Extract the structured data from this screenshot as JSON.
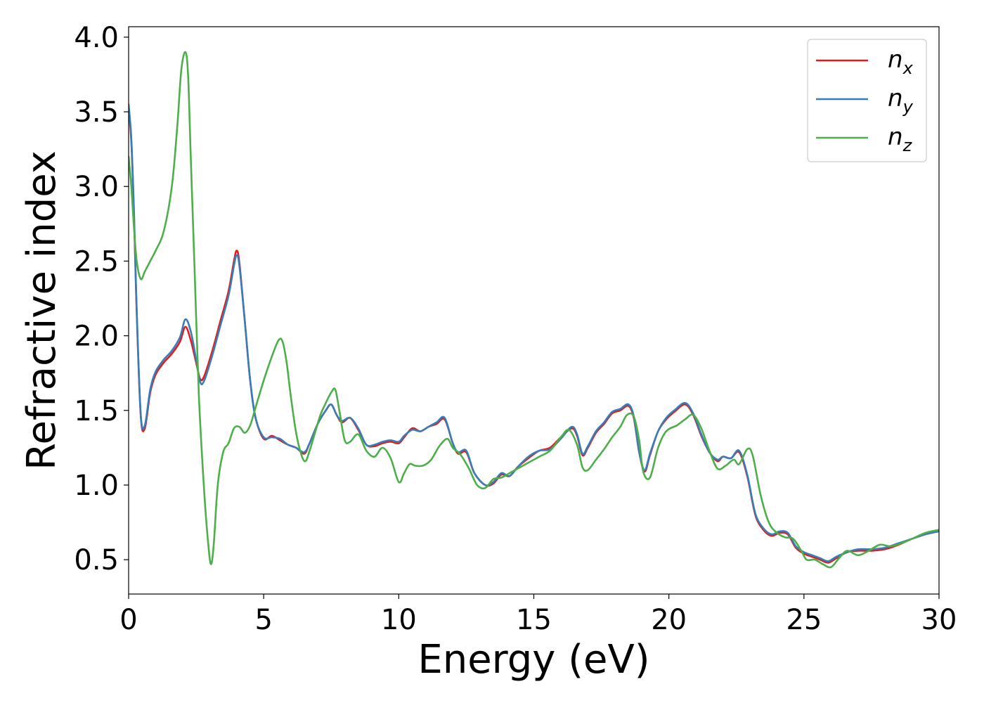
{
  "chart_data": {
    "type": "line",
    "title": "",
    "xlabel": "Energy (eV)",
    "ylabel": "Refractive index",
    "xlim": [
      0,
      30
    ],
    "ylim": [
      0.27,
      4.07
    ],
    "xticks": [
      0,
      5,
      10,
      15,
      20,
      25,
      30
    ],
    "xtick_labels": [
      "0",
      "5",
      "10",
      "15",
      "20",
      "25",
      "30"
    ],
    "yticks": [
      0.5,
      1.0,
      1.5,
      2.0,
      2.5,
      3.0,
      3.5,
      4.0
    ],
    "ytick_labels": [
      "0.5",
      "1.0",
      "1.5",
      "2.0",
      "2.5",
      "3.0",
      "3.5",
      "4.0"
    ],
    "grid": false,
    "legend_position": "top-right",
    "series": [
      {
        "name": "n_x",
        "label_base": "n",
        "label_sub": "x",
        "color": "#e41a1c",
        "x": [
          0,
          0.1,
          0.2,
          0.3,
          0.45,
          0.6,
          0.8,
          1.0,
          1.3,
          1.6,
          1.9,
          2.1,
          2.3,
          2.5,
          2.65,
          2.8,
          3.1,
          3.4,
          3.7,
          3.9,
          4.0,
          4.1,
          4.3,
          4.5,
          4.7,
          5.0,
          5.3,
          5.6,
          5.9,
          6.2,
          6.5,
          6.7,
          7.0,
          7.3,
          7.5,
          7.7,
          7.9,
          8.2,
          8.5,
          8.8,
          9.1,
          9.4,
          9.7,
          10.0,
          10.2,
          10.5,
          10.8,
          11.1,
          11.4,
          11.7,
          12.0,
          12.2,
          12.5,
          12.8,
          13.2,
          13.5,
          13.8,
          14.1,
          14.4,
          14.8,
          15.2,
          15.6,
          16.0,
          16.4,
          16.6,
          16.8,
          17.0,
          17.3,
          17.6,
          17.9,
          18.2,
          18.5,
          18.7,
          18.9,
          19.1,
          19.3,
          19.6,
          19.9,
          20.2,
          20.6,
          20.9,
          21.2,
          21.5,
          21.8,
          22.0,
          22.3,
          22.6,
          22.9,
          23.2,
          23.5,
          23.8,
          24.1,
          24.4,
          24.7,
          25.0,
          25.3,
          25.6,
          25.9,
          26.2,
          26.6,
          27.0,
          27.5,
          28.0,
          28.5,
          29.0,
          29.5,
          30.0
        ],
        "values": [
          3.52,
          3.3,
          2.8,
          2.15,
          1.46,
          1.38,
          1.62,
          1.74,
          1.82,
          1.88,
          1.96,
          2.06,
          1.97,
          1.82,
          1.71,
          1.73,
          1.9,
          2.1,
          2.3,
          2.5,
          2.57,
          2.49,
          2.1,
          1.7,
          1.45,
          1.31,
          1.33,
          1.3,
          1.27,
          1.25,
          1.21,
          1.28,
          1.41,
          1.5,
          1.54,
          1.47,
          1.42,
          1.45,
          1.37,
          1.27,
          1.26,
          1.28,
          1.29,
          1.28,
          1.32,
          1.38,
          1.36,
          1.39,
          1.41,
          1.44,
          1.28,
          1.21,
          1.22,
          1.08,
          1.0,
          1.01,
          1.07,
          1.06,
          1.12,
          1.18,
          1.23,
          1.25,
          1.32,
          1.38,
          1.33,
          1.2,
          1.25,
          1.35,
          1.41,
          1.48,
          1.5,
          1.53,
          1.45,
          1.22,
          1.09,
          1.2,
          1.36,
          1.44,
          1.49,
          1.54,
          1.47,
          1.33,
          1.22,
          1.16,
          1.19,
          1.18,
          1.22,
          1.06,
          0.8,
          0.7,
          0.66,
          0.68,
          0.67,
          0.58,
          0.54,
          0.52,
          0.5,
          0.48,
          0.51,
          0.55,
          0.56,
          0.56,
          0.57,
          0.6,
          0.64,
          0.67,
          0.69
        ]
      },
      {
        "name": "n_y",
        "label_base": "n",
        "label_sub": "y",
        "color": "#377eb8",
        "x": [
          0,
          0.1,
          0.2,
          0.3,
          0.45,
          0.6,
          0.8,
          1.0,
          1.3,
          1.6,
          1.9,
          2.1,
          2.3,
          2.5,
          2.65,
          2.8,
          3.1,
          3.4,
          3.7,
          3.9,
          4.0,
          4.1,
          4.3,
          4.5,
          4.7,
          5.0,
          5.3,
          5.6,
          5.9,
          6.2,
          6.5,
          6.7,
          7.0,
          7.3,
          7.5,
          7.7,
          7.9,
          8.2,
          8.5,
          8.8,
          9.1,
          9.4,
          9.7,
          10.0,
          10.2,
          10.5,
          10.8,
          11.1,
          11.4,
          11.7,
          12.0,
          12.2,
          12.5,
          12.8,
          13.2,
          13.5,
          13.8,
          14.1,
          14.4,
          14.8,
          15.2,
          15.6,
          16.0,
          16.4,
          16.6,
          16.8,
          17.0,
          17.3,
          17.6,
          17.9,
          18.2,
          18.5,
          18.7,
          18.9,
          19.1,
          19.3,
          19.6,
          19.9,
          20.2,
          20.6,
          20.9,
          21.2,
          21.5,
          21.8,
          22.0,
          22.3,
          22.6,
          22.9,
          23.2,
          23.5,
          23.8,
          24.1,
          24.4,
          24.7,
          25.0,
          25.3,
          25.6,
          25.9,
          26.2,
          26.6,
          27.0,
          27.5,
          28.0,
          28.5,
          29.0,
          29.5,
          30.0
        ],
        "values": [
          3.55,
          3.32,
          2.82,
          2.17,
          1.47,
          1.4,
          1.64,
          1.76,
          1.84,
          1.9,
          1.99,
          2.11,
          2.03,
          1.84,
          1.69,
          1.7,
          1.87,
          2.07,
          2.27,
          2.47,
          2.54,
          2.47,
          2.1,
          1.7,
          1.45,
          1.32,
          1.32,
          1.31,
          1.27,
          1.25,
          1.22,
          1.28,
          1.41,
          1.5,
          1.54,
          1.47,
          1.43,
          1.45,
          1.38,
          1.27,
          1.27,
          1.29,
          1.3,
          1.29,
          1.33,
          1.37,
          1.36,
          1.39,
          1.42,
          1.45,
          1.28,
          1.22,
          1.23,
          1.08,
          1.0,
          1.02,
          1.08,
          1.06,
          1.12,
          1.19,
          1.23,
          1.24,
          1.31,
          1.39,
          1.34,
          1.21,
          1.26,
          1.36,
          1.42,
          1.49,
          1.51,
          1.54,
          1.46,
          1.22,
          1.1,
          1.21,
          1.36,
          1.45,
          1.5,
          1.55,
          1.48,
          1.34,
          1.22,
          1.17,
          1.19,
          1.18,
          1.23,
          1.07,
          0.81,
          0.71,
          0.67,
          0.69,
          0.68,
          0.59,
          0.55,
          0.53,
          0.51,
          0.49,
          0.52,
          0.55,
          0.57,
          0.57,
          0.58,
          0.61,
          0.64,
          0.67,
          0.69
        ]
      },
      {
        "name": "n_z",
        "label_base": "n",
        "label_sub": "z",
        "color": "#4daf4a",
        "x": [
          0,
          0.1,
          0.2,
          0.3,
          0.45,
          0.6,
          0.8,
          1.0,
          1.3,
          1.6,
          1.8,
          1.95,
          2.1,
          2.2,
          2.3,
          2.45,
          2.6,
          2.8,
          2.95,
          3.05,
          3.15,
          3.3,
          3.5,
          3.7,
          3.9,
          4.1,
          4.3,
          4.5,
          4.7,
          5.0,
          5.3,
          5.55,
          5.7,
          5.85,
          6.0,
          6.2,
          6.4,
          6.55,
          6.7,
          6.9,
          7.1,
          7.3,
          7.5,
          7.65,
          7.8,
          8.0,
          8.2,
          8.5,
          8.8,
          9.1,
          9.4,
          9.7,
          10.0,
          10.2,
          10.4,
          10.6,
          10.9,
          11.2,
          11.5,
          11.8,
          12.0,
          12.3,
          12.6,
          12.9,
          13.2,
          13.5,
          13.8,
          14.2,
          14.7,
          15.2,
          15.6,
          16.0,
          16.3,
          16.6,
          16.8,
          17.0,
          17.3,
          17.6,
          17.9,
          18.2,
          18.45,
          18.7,
          18.9,
          19.05,
          19.3,
          19.6,
          19.9,
          20.3,
          20.6,
          20.9,
          21.2,
          21.5,
          21.8,
          22.1,
          22.4,
          22.6,
          22.9,
          23.1,
          23.4,
          23.7,
          24.0,
          24.3,
          24.6,
          24.9,
          25.1,
          25.4,
          25.7,
          26.0,
          26.3,
          26.6,
          27.0,
          27.4,
          27.8,
          28.2,
          28.6,
          29.0,
          29.5,
          30.0
        ],
        "values": [
          3.2,
          3.0,
          2.72,
          2.5,
          2.38,
          2.43,
          2.5,
          2.57,
          2.7,
          3.0,
          3.4,
          3.78,
          3.9,
          3.75,
          3.2,
          2.4,
          1.6,
          0.95,
          0.6,
          0.47,
          0.6,
          1.0,
          1.22,
          1.28,
          1.38,
          1.39,
          1.35,
          1.4,
          1.52,
          1.7,
          1.86,
          1.97,
          1.96,
          1.82,
          1.6,
          1.35,
          1.2,
          1.16,
          1.23,
          1.35,
          1.47,
          1.55,
          1.62,
          1.64,
          1.5,
          1.3,
          1.29,
          1.34,
          1.23,
          1.19,
          1.25,
          1.18,
          1.02,
          1.08,
          1.14,
          1.13,
          1.13,
          1.17,
          1.26,
          1.31,
          1.25,
          1.2,
          1.11,
          1.0,
          0.98,
          1.04,
          1.05,
          1.09,
          1.14,
          1.19,
          1.23,
          1.32,
          1.37,
          1.27,
          1.12,
          1.1,
          1.17,
          1.24,
          1.32,
          1.39,
          1.47,
          1.46,
          1.3,
          1.09,
          1.05,
          1.25,
          1.36,
          1.4,
          1.44,
          1.47,
          1.38,
          1.23,
          1.11,
          1.13,
          1.17,
          1.14,
          1.24,
          1.2,
          0.93,
          0.75,
          0.68,
          0.65,
          0.64,
          0.56,
          0.5,
          0.5,
          0.47,
          0.45,
          0.51,
          0.56,
          0.53,
          0.56,
          0.6,
          0.59,
          0.61,
          0.64,
          0.68,
          0.7
        ]
      }
    ]
  }
}
